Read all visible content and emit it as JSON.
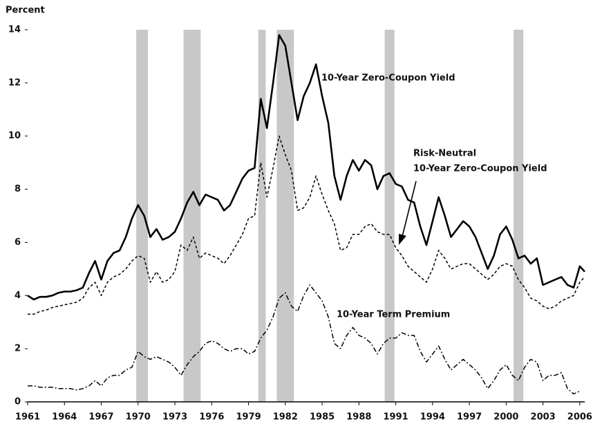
{
  "chart_data": {
    "type": "line",
    "y_label": "Percent",
    "x": [
      1961,
      1961.5,
      1962,
      1962.5,
      1963,
      1963.5,
      1964,
      1964.5,
      1965,
      1965.5,
      1966,
      1966.5,
      1967,
      1967.5,
      1968,
      1968.5,
      1969,
      1969.5,
      1970,
      1970.5,
      1971,
      1971.5,
      1972,
      1972.5,
      1973,
      1973.5,
      1974,
      1974.5,
      1975,
      1975.5,
      1976,
      1976.5,
      1977,
      1977.5,
      1978,
      1978.5,
      1979,
      1979.5,
      1980,
      1980.5,
      1981,
      1981.5,
      1982,
      1982.5,
      1983,
      1983.5,
      1984,
      1984.5,
      1985,
      1985.5,
      1986,
      1986.5,
      1987,
      1987.5,
      1988,
      1988.5,
      1989,
      1989.5,
      1990,
      1990.5,
      1991,
      1991.5,
      1992,
      1992.5,
      1993,
      1993.5,
      1994,
      1994.5,
      1995,
      1995.5,
      1996,
      1996.5,
      1997,
      1997.5,
      1998,
      1998.5,
      1999,
      1999.5,
      2000,
      2000.5,
      2001,
      2001.5,
      2002,
      2002.5,
      2003,
      2003.5,
      2004,
      2004.5,
      2005,
      2005.5,
      2006,
      2006.4
    ],
    "series": [
      {
        "name": "10-Year Zero-Coupon Yield",
        "color": "#000000",
        "style": "solid",
        "values": [
          4.0,
          3.85,
          3.95,
          3.95,
          4.0,
          4.1,
          4.15,
          4.15,
          4.2,
          4.3,
          4.85,
          5.3,
          4.6,
          5.3,
          5.6,
          5.7,
          6.2,
          6.9,
          7.4,
          7.0,
          6.2,
          6.5,
          6.1,
          6.2,
          6.4,
          6.9,
          7.5,
          7.9,
          7.4,
          7.8,
          7.7,
          7.6,
          7.2,
          7.4,
          7.9,
          8.4,
          8.7,
          8.8,
          11.4,
          10.3,
          12.0,
          13.8,
          13.4,
          12.0,
          10.6,
          11.5,
          12.0,
          12.7,
          11.5,
          10.5,
          8.5,
          7.6,
          8.5,
          9.1,
          8.7,
          9.1,
          8.9,
          8.0,
          8.5,
          8.6,
          8.2,
          8.1,
          7.6,
          7.5,
          6.6,
          5.9,
          6.8,
          7.7,
          7.0,
          6.2,
          6.5,
          6.8,
          6.6,
          6.2,
          5.6,
          5.0,
          5.5,
          6.3,
          6.6,
          6.1,
          5.4,
          5.5,
          5.2,
          5.4,
          4.4,
          4.5,
          4.6,
          4.7,
          4.4,
          4.3,
          5.1,
          4.9
        ]
      },
      {
        "name": [
          "Risk-Neutral",
          "10-Year Zero-Coupon Yield"
        ],
        "color": "#000000",
        "style": "dashed",
        "values": [
          3.3,
          3.3,
          3.4,
          3.45,
          3.55,
          3.6,
          3.65,
          3.7,
          3.75,
          3.9,
          4.3,
          4.5,
          4.0,
          4.5,
          4.7,
          4.8,
          5.0,
          5.3,
          5.5,
          5.4,
          4.5,
          4.9,
          4.5,
          4.6,
          4.9,
          5.9,
          5.7,
          6.2,
          5.4,
          5.6,
          5.5,
          5.4,
          5.2,
          5.5,
          5.9,
          6.3,
          6.9,
          7.0,
          9.0,
          7.7,
          8.8,
          10.0,
          9.3,
          8.7,
          7.2,
          7.3,
          7.7,
          8.5,
          7.8,
          7.2,
          6.7,
          5.7,
          5.8,
          6.3,
          6.3,
          6.6,
          6.7,
          6.4,
          6.3,
          6.3,
          5.8,
          5.5,
          5.1,
          4.9,
          4.7,
          4.5,
          5.0,
          5.7,
          5.4,
          5.0,
          5.1,
          5.2,
          5.2,
          5.0,
          4.8,
          4.6,
          4.8,
          5.1,
          5.2,
          5.1,
          4.6,
          4.3,
          3.9,
          3.8,
          3.6,
          3.5,
          3.6,
          3.8,
          3.9,
          4.0,
          4.5,
          4.7
        ]
      },
      {
        "name": "10-Year Term Premium",
        "color": "#000000",
        "style": "dashdot",
        "values": [
          0.6,
          0.6,
          0.55,
          0.55,
          0.55,
          0.5,
          0.5,
          0.5,
          0.45,
          0.5,
          0.6,
          0.8,
          0.6,
          0.9,
          1.0,
          1.0,
          1.2,
          1.3,
          1.9,
          1.7,
          1.6,
          1.7,
          1.6,
          1.5,
          1.3,
          1.0,
          1.4,
          1.7,
          1.9,
          2.2,
          2.3,
          2.2,
          2.0,
          1.9,
          2.0,
          2.0,
          1.8,
          1.9,
          2.4,
          2.7,
          3.2,
          3.9,
          4.1,
          3.6,
          3.4,
          4.0,
          4.4,
          4.1,
          3.8,
          3.2,
          2.2,
          2.0,
          2.5,
          2.8,
          2.5,
          2.4,
          2.2,
          1.8,
          2.2,
          2.4,
          2.4,
          2.6,
          2.5,
          2.5,
          1.9,
          1.5,
          1.8,
          2.1,
          1.6,
          1.2,
          1.4,
          1.6,
          1.4,
          1.2,
          0.9,
          0.5,
          0.8,
          1.2,
          1.4,
          1.0,
          0.8,
          1.3,
          1.6,
          1.5,
          0.8,
          1.0,
          1.0,
          1.1,
          0.5,
          0.3,
          0.4,
          null
        ]
      }
    ],
    "shaded_periods": [
      [
        1969.85,
        1970.8
      ],
      [
        1973.7,
        1975.1
      ],
      [
        1979.8,
        1980.4
      ],
      [
        1981.3,
        1982.7
      ],
      [
        1990.1,
        1990.9
      ],
      [
        2000.6,
        2001.4
      ]
    ],
    "shade_color": "#c8c8c8",
    "xlim": [
      1961,
      2006.4
    ],
    "xticks": [
      1961,
      1964,
      1967,
      1970,
      1973,
      1976,
      1979,
      1982,
      1985,
      1988,
      1991,
      1994,
      1997,
      2000,
      2003,
      2006
    ],
    "ylim": [
      0,
      14
    ],
    "yticks": [
      0,
      2,
      4,
      6,
      8,
      10,
      12,
      14
    ]
  }
}
